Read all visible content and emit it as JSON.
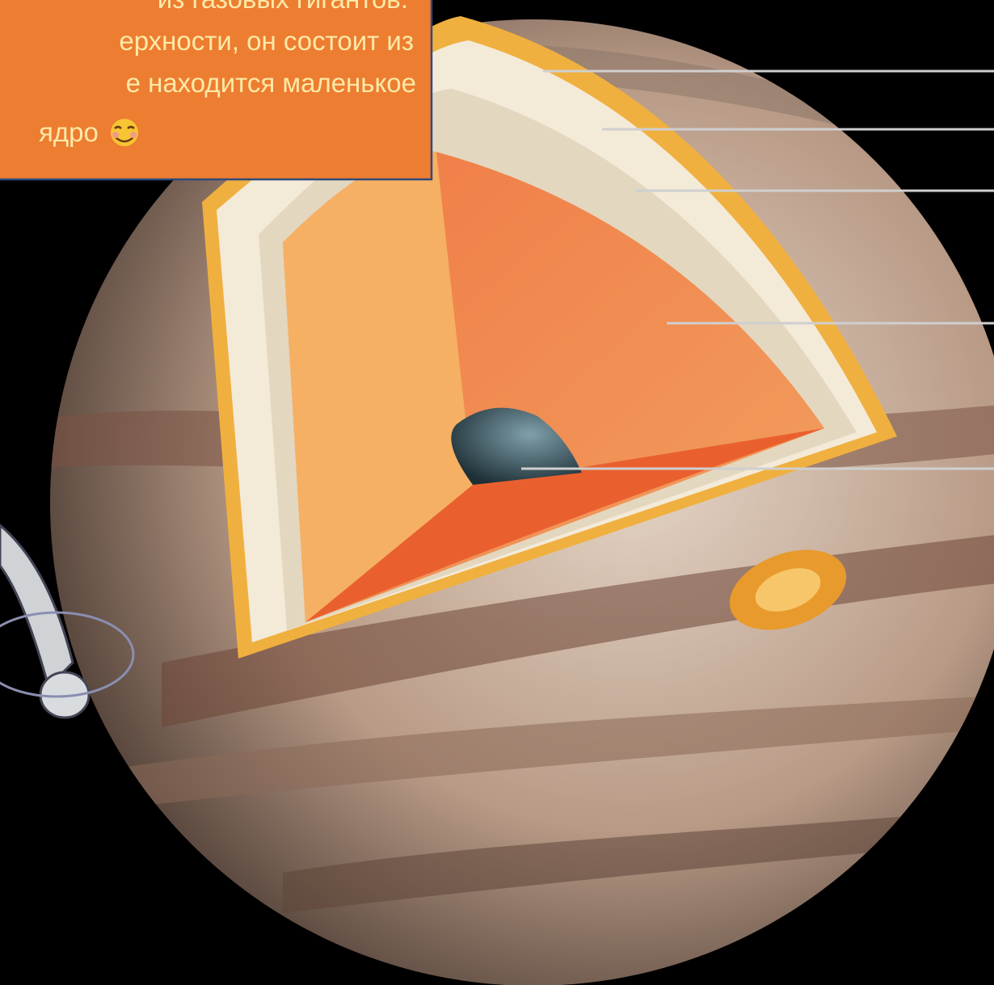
{
  "text_box": {
    "lines": [
      "из газовых гигантов.",
      "ерхности, он состоит из",
      "е находится маленькое",
      "ядро"
    ]
  }
}
